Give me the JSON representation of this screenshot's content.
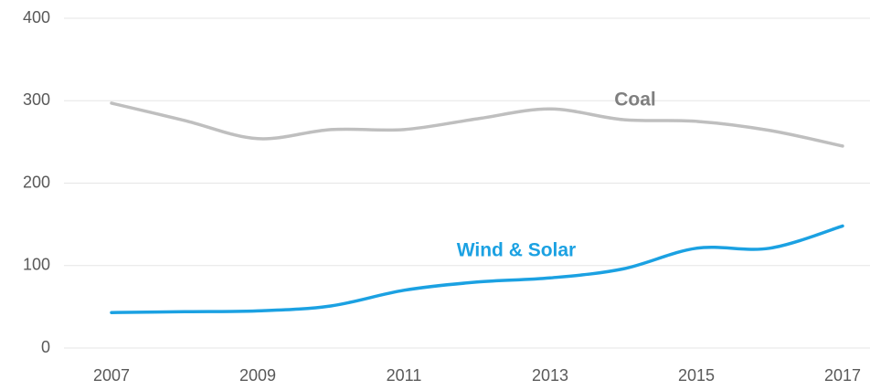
{
  "chart_data": {
    "type": "line",
    "x": [
      2007,
      2008,
      2009,
      2010,
      2011,
      2012,
      2013,
      2014,
      2015,
      2016,
      2017
    ],
    "xlim": [
      2007,
      2017
    ],
    "xticks": [
      2007,
      2009,
      2011,
      2013,
      2015,
      2017
    ],
    "ylim": [
      0,
      400
    ],
    "yticks": [
      0,
      100,
      200,
      300,
      400
    ],
    "grid": true,
    "series": [
      {
        "name": "Coal",
        "color": "#bfbfbf",
        "values": [
          297,
          276,
          254,
          265,
          265,
          278,
          290,
          277,
          275,
          264,
          245
        ]
      },
      {
        "name": "Wind & Solar",
        "color": "#1ba1e2",
        "values": [
          43,
          44,
          45,
          51,
          70,
          80,
          85,
          96,
          121,
          121,
          148
        ]
      }
    ]
  }
}
